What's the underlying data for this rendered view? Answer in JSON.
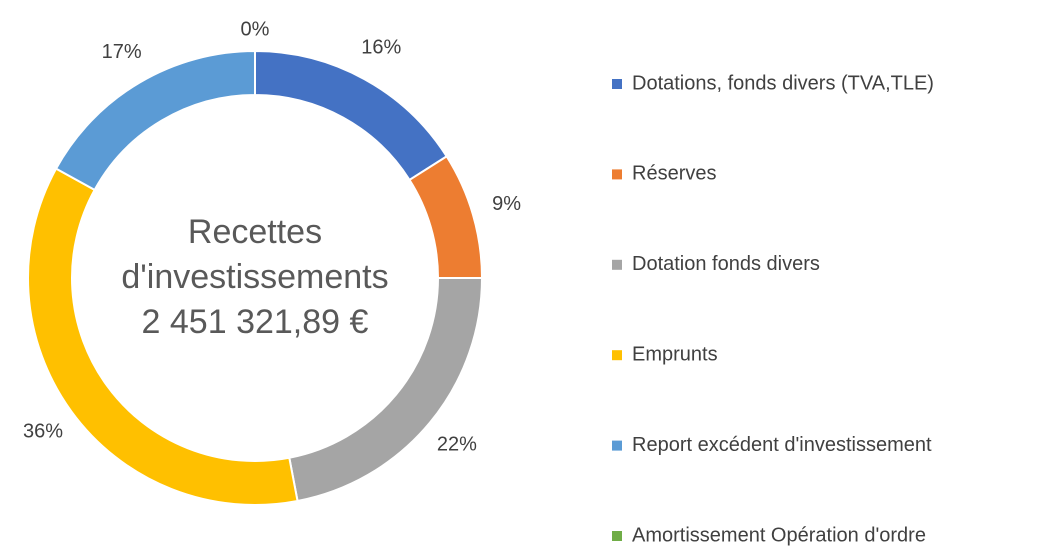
{
  "chart_data": {
    "type": "donut",
    "center_text": [
      "Recettes",
      "d'investissements",
      "2 451 321,89 €"
    ],
    "categories": [
      "Dotations, fonds divers (TVA,TLE)",
      "Réserves",
      "Dotation fonds divers",
      "Emprunts",
      "Report excédent d'investissement",
      "Amortissement Opération d'ordre"
    ],
    "values": [
      16,
      9,
      22,
      36,
      17,
      0
    ],
    "value_labels": [
      "16%",
      "9%",
      "22%",
      "36%",
      "17%",
      "0%"
    ],
    "colors": [
      "#4472c4",
      "#ed7d31",
      "#a5a5a5",
      "#ffc000",
      "#5b9bd5",
      "#70ad47"
    ],
    "legend": "right"
  }
}
